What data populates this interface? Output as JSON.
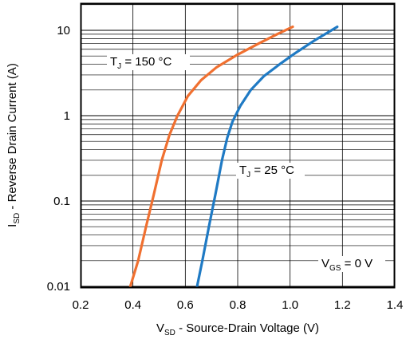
{
  "chart_data": {
    "type": "line",
    "title": "",
    "xlabel": {
      "main": "V",
      "sub": "SD",
      "rest": " - Source-Drain Voltage (V)"
    },
    "ylabel": {
      "main": "I",
      "sub": "SD",
      "rest": " - Reverse Drain Current (A)"
    },
    "xlim": [
      0.2,
      1.4
    ],
    "ylim": [
      0.01,
      20
    ],
    "y_scale": "log",
    "grid": true,
    "x_ticks": [
      {
        "value": 0.2,
        "label": "0.2"
      },
      {
        "value": 0.4,
        "label": "0.4"
      },
      {
        "value": 0.6,
        "label": "0.6"
      },
      {
        "value": 0.8,
        "label": "0.8"
      },
      {
        "value": 1.0,
        "label": "1.0"
      },
      {
        "value": 1.2,
        "label": "1.2"
      },
      {
        "value": 1.4,
        "label": "1.4"
      }
    ],
    "y_ticks": [
      {
        "value": 0.01,
        "label": "0.01"
      },
      {
        "value": 0.1,
        "label": "0.1"
      },
      {
        "value": 1,
        "label": "1"
      },
      {
        "value": 10,
        "label": "10"
      }
    ],
    "series": [
      {
        "label": {
          "main": "T",
          "sub": "J",
          "rest": " = 150 °C"
        },
        "color": "#f07030",
        "points": [
          [
            0.39,
            0.01
          ],
          [
            0.42,
            0.02
          ],
          [
            0.45,
            0.05
          ],
          [
            0.48,
            0.12
          ],
          [
            0.51,
            0.3
          ],
          [
            0.54,
            0.6
          ],
          [
            0.57,
            1.0
          ],
          [
            0.61,
            1.7
          ],
          [
            0.66,
            2.6
          ],
          [
            0.72,
            3.7
          ],
          [
            0.8,
            5.2
          ],
          [
            0.88,
            7.0
          ],
          [
            0.95,
            9.0
          ],
          [
            1.01,
            11.0
          ]
        ]
      },
      {
        "label": {
          "main": "T",
          "sub": "J",
          "rest": " = 25 °C"
        },
        "color": "#1f7ac4",
        "points": [
          [
            0.645,
            0.01
          ],
          [
            0.665,
            0.02
          ],
          [
            0.69,
            0.05
          ],
          [
            0.715,
            0.12
          ],
          [
            0.74,
            0.3
          ],
          [
            0.76,
            0.55
          ],
          [
            0.78,
            0.85
          ],
          [
            0.81,
            1.3
          ],
          [
            0.85,
            2.0
          ],
          [
            0.9,
            2.9
          ],
          [
            0.96,
            4.0
          ],
          [
            1.02,
            5.4
          ],
          [
            1.09,
            7.5
          ],
          [
            1.18,
            11.0
          ]
        ]
      }
    ],
    "annotations": [
      {
        "main": "V",
        "sub": "GS",
        "rest": " = 0 V"
      }
    ]
  }
}
